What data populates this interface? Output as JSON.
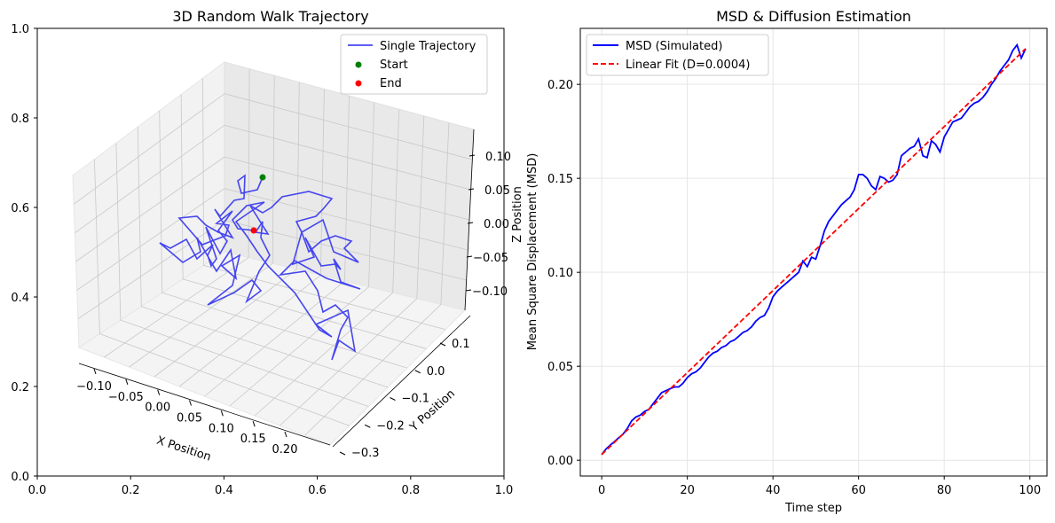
{
  "chart_data": [
    {
      "type": "line",
      "subtype": "3d",
      "title": "3D Random Walk Trajectory",
      "xlabel": "X Position",
      "ylabel": "Y Position",
      "zlabel": "Z Position",
      "x_ticks": [
        "−0.10",
        "−0.05",
        "0.00",
        "0.05",
        "0.10",
        "0.15",
        "0.20"
      ],
      "y_ticks": [
        "−0.3",
        "−0.2",
        "−0.1",
        "0.0",
        "0.1"
      ],
      "z_ticks": [
        "−0.10",
        "−0.05",
        "0.00",
        "0.05",
        "0.10"
      ],
      "frame_x_ticks": [
        "0.0",
        "0.2",
        "0.4",
        "0.6",
        "0.8",
        "1.0"
      ],
      "frame_y_ticks": [
        "0.0",
        "0.2",
        "0.4",
        "0.6",
        "0.8",
        "1.0"
      ],
      "grid": true,
      "legend_position": "top-right",
      "series": [
        {
          "name": "Single Trajectory",
          "color": "#4646f0",
          "kind": "line"
        },
        {
          "name": "Start",
          "color": "#008000",
          "kind": "point"
        },
        {
          "name": "End",
          "color": "#ff0000",
          "kind": "point"
        }
      ]
    },
    {
      "type": "line",
      "title": "MSD & Diffusion Estimation",
      "xlabel": "Time step",
      "ylabel": "Mean Square Displacement (MSD)",
      "xlim": [
        -5,
        104
      ],
      "ylim": [
        -0.0084,
        0.2298
      ],
      "x_ticks": [
        "0",
        "20",
        "40",
        "60",
        "80",
        "100"
      ],
      "x_tick_values": [
        0,
        20,
        40,
        60,
        80,
        100
      ],
      "y_ticks": [
        "0.00",
        "0.05",
        "0.10",
        "0.15",
        "0.20"
      ],
      "y_tick_values": [
        0,
        0.05,
        0.1,
        0.15,
        0.2
      ],
      "grid": true,
      "legend_position": "top-left",
      "series": [
        {
          "name": "MSD (Simulated)",
          "color": "#0000ff",
          "style": "solid",
          "x": [
            0,
            1,
            2,
            3,
            4,
            5,
            6,
            7,
            8,
            9,
            10,
            11,
            12,
            13,
            14,
            15,
            16,
            17,
            18,
            19,
            20,
            21,
            22,
            23,
            24,
            25,
            26,
            27,
            28,
            29,
            30,
            31,
            32,
            33,
            34,
            35,
            36,
            37,
            38,
            39,
            40,
            41,
            42,
            43,
            44,
            45,
            46,
            47,
            48,
            49,
            50,
            51,
            52,
            53,
            54,
            55,
            56,
            57,
            58,
            59,
            60,
            61,
            62,
            63,
            64,
            65,
            66,
            67,
            68,
            69,
            70,
            71,
            72,
            73,
            74,
            75,
            76,
            77,
            78,
            79,
            80,
            81,
            82,
            83,
            84,
            85,
            86,
            87,
            88,
            89,
            90,
            91,
            92,
            93,
            94,
            95,
            96,
            97,
            98,
            99
          ],
          "values": [
            0.003,
            0.006,
            0.008,
            0.01,
            0.012,
            0.014,
            0.017,
            0.021,
            0.023,
            0.024,
            0.026,
            0.027,
            0.03,
            0.033,
            0.036,
            0.037,
            0.038,
            0.039,
            0.039,
            0.041,
            0.044,
            0.046,
            0.047,
            0.049,
            0.052,
            0.055,
            0.057,
            0.058,
            0.06,
            0.061,
            0.063,
            0.064,
            0.066,
            0.068,
            0.069,
            0.071,
            0.074,
            0.076,
            0.077,
            0.081,
            0.087,
            0.09,
            0.092,
            0.094,
            0.096,
            0.098,
            0.1,
            0.106,
            0.103,
            0.108,
            0.107,
            0.114,
            0.122,
            0.127,
            0.13,
            0.133,
            0.136,
            0.138,
            0.14,
            0.144,
            0.152,
            0.152,
            0.15,
            0.146,
            0.144,
            0.151,
            0.15,
            0.148,
            0.149,
            0.152,
            0.162,
            0.164,
            0.166,
            0.167,
            0.171,
            0.162,
            0.161,
            0.17,
            0.168,
            0.164,
            0.172,
            0.176,
            0.18,
            0.181,
            0.182,
            0.185,
            0.188,
            0.19,
            0.191,
            0.193,
            0.196,
            0.2,
            0.203,
            0.207,
            0.21,
            0.213,
            0.218,
            0.221,
            0.214,
            0.219
          ]
        },
        {
          "name": "Linear Fit (D=0.0004)",
          "color": "#ff0000",
          "style": "dashed",
          "x": [
            0,
            99
          ],
          "values": [
            0.003,
            0.219
          ]
        }
      ]
    }
  ]
}
